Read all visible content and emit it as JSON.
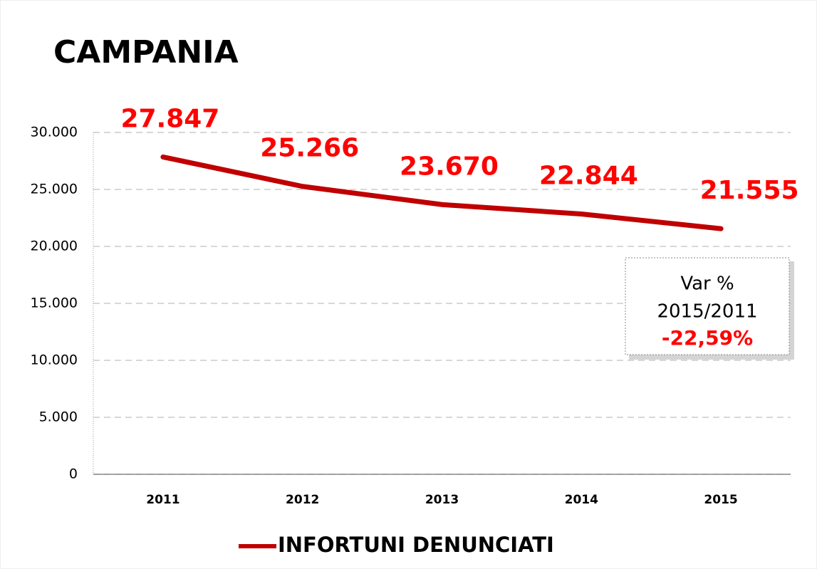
{
  "chart_data": {
    "type": "line",
    "title": "CAMPANIA",
    "categories": [
      "2011",
      "2012",
      "2013",
      "2014",
      "2015"
    ],
    "series": [
      {
        "name": "INFORTUNI DENUNCIATI",
        "color": "#c00000",
        "values": [
          27847,
          25266,
          23670,
          22844,
          21555
        ],
        "value_labels": [
          "27.847",
          "25.266",
          "23.670",
          "22.844",
          "21.555"
        ]
      }
    ],
    "ylim": [
      0,
      30000
    ],
    "yticks": [
      0,
      {
        "value": 5000,
        "label": "5.000"
      },
      {
        "value": 10000,
        "label": "10.000"
      },
      {
        "value": 15000,
        "label": "15.000"
      },
      {
        "value": 20000,
        "label": "20.000"
      },
      {
        "value": 25000,
        "label": "25.000"
      },
      {
        "value": 30000,
        "label": "30.000"
      }
    ],
    "grid": true,
    "legend": "bottom",
    "annotation": [
      "Var %",
      "2015/2011",
      "-22,59%"
    ]
  }
}
